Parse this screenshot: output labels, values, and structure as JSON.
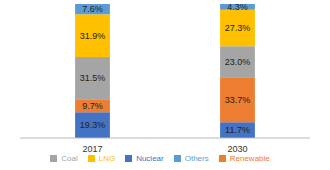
{
  "chart_data": {
    "type": "bar",
    "stacked": true,
    "data_labels": true,
    "tick_labels": "x",
    "legend": "bottom",
    "categories": [
      "2017",
      "2030"
    ],
    "ylim": [
      0,
      100
    ],
    "series": [
      {
        "name": "Nuclear",
        "color": "#4472c4",
        "values": [
          19.3,
          11.7
        ],
        "value_labels": [
          "19.3%",
          "11.7%"
        ]
      },
      {
        "name": "Renewable",
        "color": "#ed7d31",
        "values": [
          9.7,
          33.7
        ],
        "value_labels": [
          "9.7%",
          "33.7%"
        ]
      },
      {
        "name": "Coal",
        "color": "#a5a5a5",
        "values": [
          31.5,
          23.0
        ],
        "value_labels": [
          "31.5%",
          "23.0%"
        ]
      },
      {
        "name": "LNG",
        "color": "#ffc000",
        "values": [
          31.9,
          27.3
        ],
        "value_labels": [
          "31.9%",
          "27.3%"
        ]
      },
      {
        "name": "Others",
        "color": "#5b9bd5",
        "values": [
          7.6,
          4.3
        ],
        "value_labels": [
          "7.6%",
          "4.3%"
        ]
      }
    ]
  }
}
